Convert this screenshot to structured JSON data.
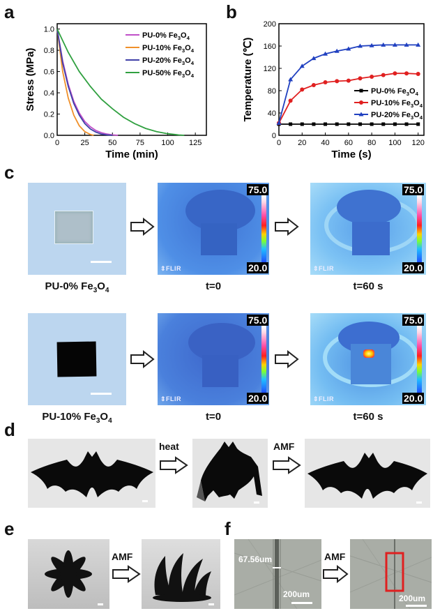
{
  "panels": {
    "a": "a",
    "b": "b",
    "c": "c",
    "d": "d",
    "e": "e",
    "f": "f"
  },
  "chart_data": [
    {
      "type": "line",
      "xlabel": "Time (min)",
      "ylabel": "Stress (MPa)",
      "xlim": [
        0,
        135
      ],
      "ylim": [
        0,
        1.05
      ],
      "xticks": [
        "0",
        "25",
        "50",
        "75",
        "100",
        "125"
      ],
      "yticks": [
        "0.0",
        "0.2",
        "0.4",
        "0.6",
        "0.8",
        "1.0"
      ],
      "legend_position": "top-right",
      "series": [
        {
          "name": "PU-0% Fe3O4",
          "color": "#c050c8",
          "x": [
            0,
            5,
            10,
            15,
            20,
            25,
            30,
            35,
            40,
            45,
            50,
            55
          ],
          "y": [
            1.0,
            0.7,
            0.48,
            0.32,
            0.21,
            0.13,
            0.08,
            0.045,
            0.025,
            0.012,
            0.004,
            0.0
          ]
        },
        {
          "name": "PU-10% Fe3O4",
          "color": "#f0902a",
          "x": [
            0,
            5,
            10,
            15,
            20,
            25,
            30,
            33
          ],
          "y": [
            1.0,
            0.6,
            0.35,
            0.19,
            0.09,
            0.035,
            0.008,
            0.0
          ]
        },
        {
          "name": "PU-20% Fe3O4",
          "color": "#4040a8",
          "x": [
            0,
            5,
            10,
            15,
            20,
            25,
            30,
            35,
            40,
            45,
            50
          ],
          "y": [
            1.0,
            0.68,
            0.46,
            0.3,
            0.19,
            0.11,
            0.06,
            0.03,
            0.012,
            0.004,
            0.0
          ]
        },
        {
          "name": "PU-50% Fe3O4",
          "color": "#30a040",
          "x": [
            0,
            10,
            20,
            30,
            40,
            50,
            60,
            70,
            80,
            90,
            100,
            110,
            115
          ],
          "y": [
            1.0,
            0.78,
            0.6,
            0.46,
            0.34,
            0.25,
            0.17,
            0.11,
            0.065,
            0.035,
            0.015,
            0.003,
            0.0
          ]
        }
      ]
    },
    {
      "type": "line",
      "xlabel": "Time (s)",
      "ylabel": "Temperature (℃)",
      "xlim": [
        0,
        125
      ],
      "ylim": [
        0,
        200
      ],
      "xticks": [
        "0",
        "20",
        "40",
        "60",
        "80",
        "100",
        "120"
      ],
      "yticks": [
        "0",
        "40",
        "80",
        "120",
        "160",
        "200"
      ],
      "legend_position": "bottom-right",
      "series": [
        {
          "name": "PU-0% Fe3O4",
          "color": "#000000",
          "marker": "square",
          "x": [
            0,
            10,
            20,
            30,
            40,
            50,
            60,
            70,
            80,
            90,
            100,
            110,
            120
          ],
          "y": [
            20,
            20,
            20,
            20,
            20,
            20,
            20,
            20,
            20,
            20,
            20,
            20,
            20
          ]
        },
        {
          "name": "PU-10% Fe3O4",
          "color": "#e02020",
          "marker": "circle",
          "x": [
            0,
            10,
            20,
            30,
            40,
            50,
            60,
            70,
            80,
            90,
            100,
            110,
            120
          ],
          "y": [
            22,
            62,
            82,
            90,
            95,
            97,
            98,
            102,
            105,
            108,
            111,
            111,
            110
          ]
        },
        {
          "name": "PU-20% Fe3O4",
          "color": "#2040c0",
          "marker": "triangle",
          "x": [
            0,
            10,
            20,
            30,
            40,
            50,
            60,
            70,
            80,
            90,
            100,
            110,
            120
          ],
          "y": [
            22,
            100,
            124,
            138,
            146,
            151,
            155,
            160,
            161,
            162,
            162,
            162,
            162
          ]
        }
      ]
    }
  ],
  "panel_c": {
    "row1_label_main": "PU-0% Fe",
    "row1_label_sub3": "3",
    "row1_label_o": "O",
    "row1_label_sub4": "4",
    "row2_label_main": "PU-10% Fe",
    "row2_label_sub3": "3",
    "row2_label_o": "O",
    "row2_label_sub4": "4",
    "t0": "t=0",
    "t60": "t=60 s",
    "scale_max": "75.0",
    "scale_min": "20.0",
    "flir": "FLIR"
  },
  "panel_d": {
    "heat": "heat",
    "amf": "AMF"
  },
  "panel_e": {
    "amf": "AMF"
  },
  "panel_f": {
    "amf": "AMF",
    "width_label": "67.56um",
    "scale1": "200um",
    "scale2": "200um"
  },
  "colors": {
    "ir_bg": "#4a86d8",
    "photo_bg": "#b9d4ee",
    "red_box": "#e02020"
  }
}
